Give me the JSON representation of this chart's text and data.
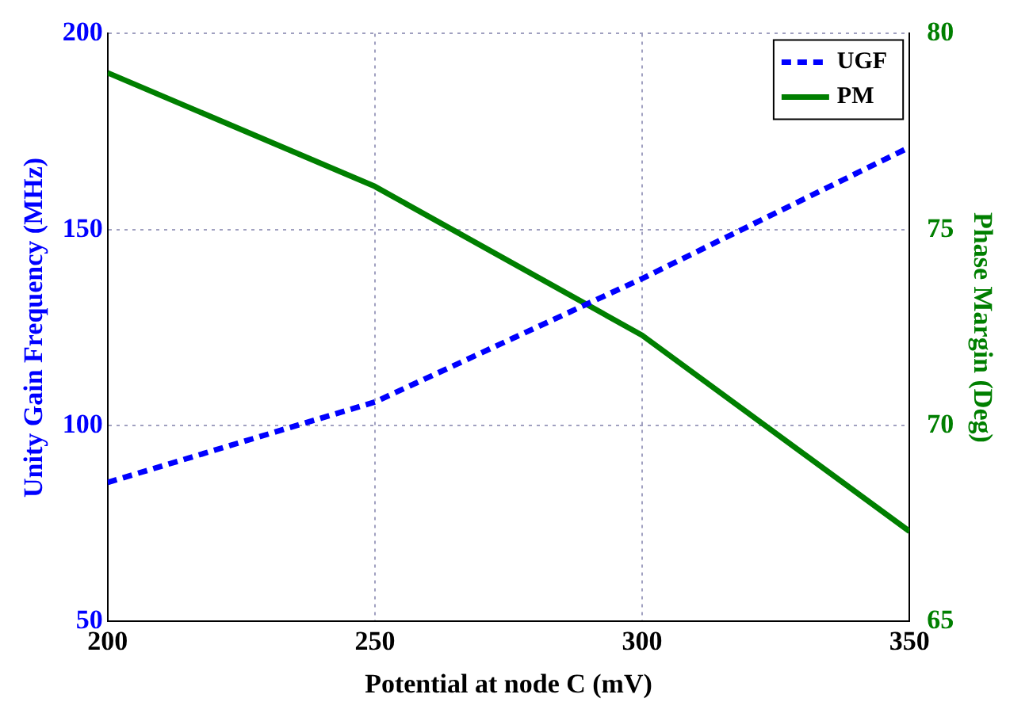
{
  "chart_data": {
    "type": "line",
    "xlabel": "Potential at node C (mV)",
    "ylabel": "Unity Gain Frequency (MHz)",
    "y2label": "Phase Margin (Deg)",
    "x": [
      200,
      250,
      300,
      350
    ],
    "xlim": [
      200,
      350
    ],
    "xticks": [
      200,
      250,
      300,
      350
    ],
    "ylim": [
      50,
      200
    ],
    "yticks": [
      50,
      100,
      150,
      200
    ],
    "y2lim": [
      65,
      80
    ],
    "y2ticks": [
      65,
      70,
      75,
      80
    ],
    "grid": true,
    "legend": "top right",
    "marker": "none",
    "series": [
      {
        "name": "UGF",
        "color": "#0000ff",
        "values": [
          85.5,
          106,
          137.5,
          171
        ],
        "line_style": "dashed"
      },
      {
        "name": "PM",
        "color": "#007f00",
        "values": [
          79,
          76.1,
          72.3,
          67.3
        ],
        "axis": "y2",
        "line_style": "solid"
      }
    ]
  }
}
